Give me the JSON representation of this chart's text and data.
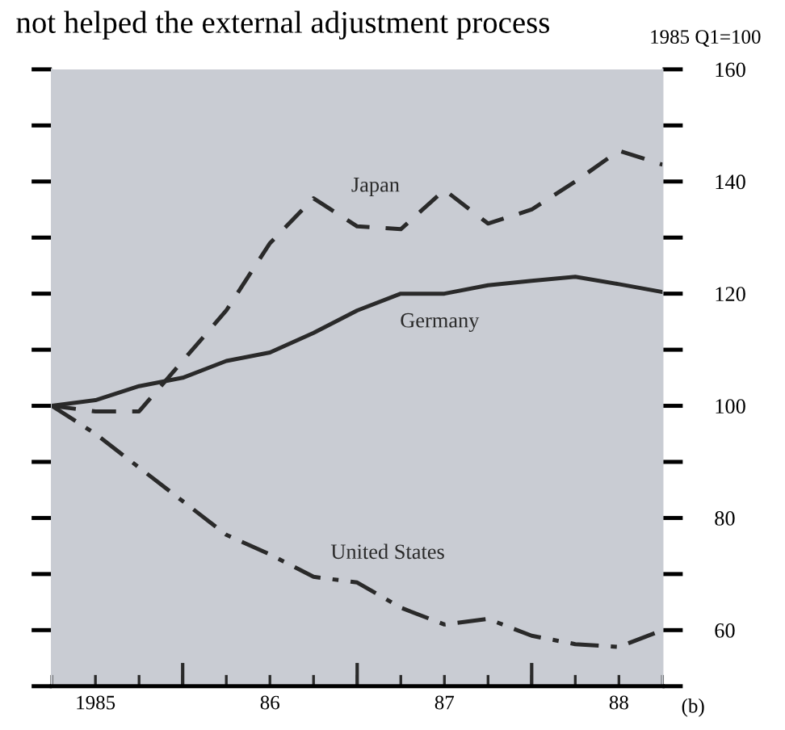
{
  "chart_data": {
    "type": "line",
    "title": "not helped the external adjustment process",
    "annotations": [
      "1985 Q1=100",
      "(b)"
    ],
    "categories": [
      null,
      "1985",
      null,
      null,
      null,
      "86",
      null,
      null,
      null,
      "87",
      null,
      null,
      null,
      "88",
      null
    ],
    "series": [
      {
        "name": "Japan",
        "color": "#2a2a2a",
        "line_style": "dashed",
        "values": [
          100,
          99,
          99,
          108,
          117,
          129,
          137,
          132,
          131.5,
          138.5,
          132.5,
          135,
          140,
          145.5,
          143
        ]
      },
      {
        "name": "Germany",
        "color": "#2a2a2a",
        "line_style": "solid",
        "values": [
          100,
          101,
          103.5,
          105,
          108,
          109.5,
          113,
          117,
          120,
          120,
          121.5,
          122.3,
          123,
          121.7,
          120.3
        ]
      },
      {
        "name": "United States",
        "color": "#2a2a2a",
        "line_style": "dashdot",
        "values": [
          100,
          95,
          89,
          83,
          77,
          73.5,
          69.5,
          68.5,
          64,
          61,
          62,
          59,
          57.5,
          57,
          60
        ]
      }
    ],
    "ylim": [
      50,
      160
    ],
    "yticks": [
      {
        "value": 50,
        "label": null
      },
      60,
      {
        "value": 70,
        "label": null
      },
      80,
      {
        "value": 90,
        "label": null
      },
      100,
      {
        "value": 110,
        "label": null
      },
      120,
      {
        "value": 130,
        "label": null
      },
      140,
      {
        "value": 150,
        "label": null
      },
      160
    ],
    "grid": false,
    "legend": false,
    "marker": "none"
  }
}
